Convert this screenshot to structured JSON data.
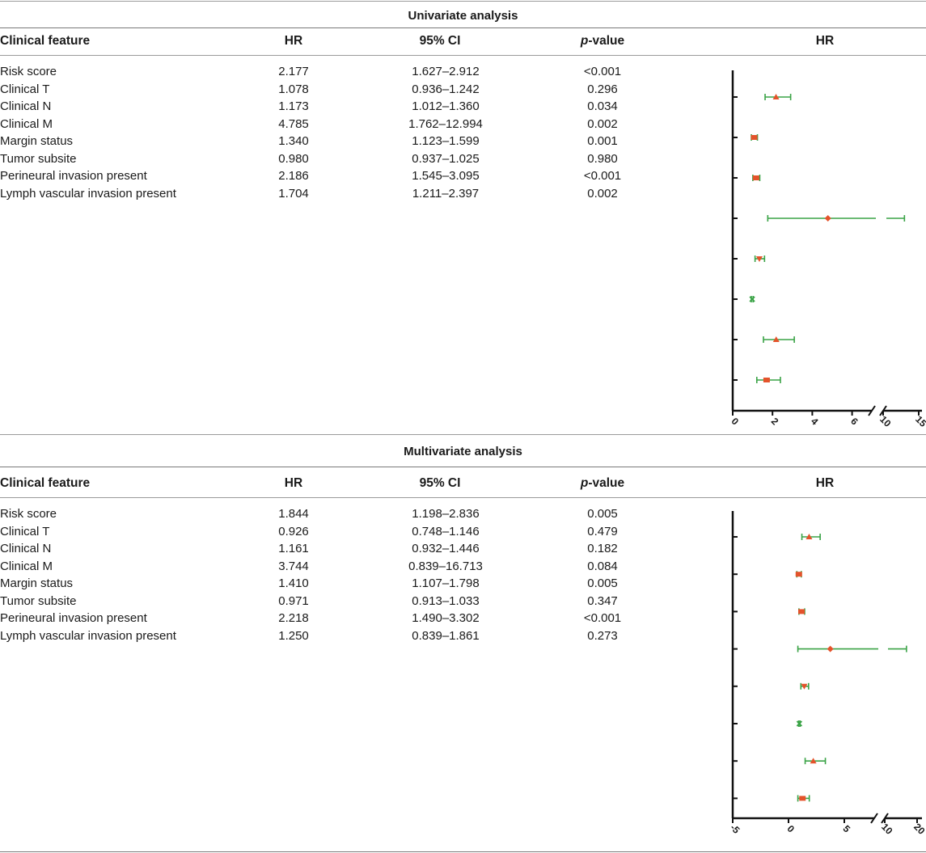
{
  "columns": {
    "feature": "Clinical feature",
    "hr": "HR",
    "ci": "95% CI",
    "p_italic": "p",
    "p_rest": "-value",
    "plot": "HR"
  },
  "univariate": {
    "title": "Univariate analysis",
    "rows": [
      {
        "feature": "Risk score",
        "hr": "2.177",
        "ci": "1.627–2.912",
        "p": "<0.001"
      },
      {
        "feature": "Clinical T",
        "hr": "1.078",
        "ci": "0.936–1.242",
        "p": "0.296"
      },
      {
        "feature": "Clinical N",
        "hr": "1.173",
        "ci": "1.012–1.360",
        "p": "0.034"
      },
      {
        "feature": "Clinical M",
        "hr": "4.785",
        "ci": "1.762–12.994",
        "p": "0.002"
      },
      {
        "feature": "Margin status",
        "hr": "1.340",
        "ci": "1.123–1.599",
        "p": "0.001"
      },
      {
        "feature": "Tumor subsite",
        "hr": "0.980",
        "ci": "0.937–1.025",
        "p": "0.980"
      },
      {
        "feature": "Perineural invasion present",
        "hr": "2.186",
        "ci": "1.545–3.095",
        "p": "<0.001"
      },
      {
        "feature": "Lymph vascular invasion present",
        "hr": "1.704",
        "ci": "1.211–2.397",
        "p": "0.002"
      }
    ],
    "plot_ticks": [
      "0",
      "2",
      "4",
      "6",
      "10",
      "15"
    ]
  },
  "multivariate": {
    "title": "Multivariate analysis",
    "rows": [
      {
        "feature": "Risk score",
        "hr": "1.844",
        "ci": "1.198–2.836",
        "p": "0.005"
      },
      {
        "feature": "Clinical T",
        "hr": "0.926",
        "ci": "0.748–1.146",
        "p": "0.479"
      },
      {
        "feature": "Clinical N",
        "hr": "1.161",
        "ci": "0.932–1.446",
        "p": "0.182"
      },
      {
        "feature": "Clinical M",
        "hr": "3.744",
        "ci": "0.839–16.713",
        "p": "0.084"
      },
      {
        "feature": "Margin status",
        "hr": "1.410",
        "ci": "1.107–1.798",
        "p": "0.005"
      },
      {
        "feature": "Tumor subsite",
        "hr": "0.971",
        "ci": "0.913–1.033",
        "p": "0.347"
      },
      {
        "feature": "Perineural invasion present",
        "hr": "2.218",
        "ci": "1.490–3.302",
        "p": "<0.001"
      },
      {
        "feature": "Lymph vascular invasion present",
        "hr": "1.250",
        "ci": "0.839–1.861",
        "p": "0.273"
      }
    ],
    "plot_ticks": [
      "-5",
      "0",
      "5",
      "10",
      "20"
    ]
  },
  "colors": {
    "ci_line": "#3aa346",
    "marker": "#e4532b",
    "axis": "#111111"
  },
  "chart_data": [
    {
      "type": "scatter",
      "subtype": "forest",
      "xlabel": "",
      "ylabel": "",
      "x_ticks": [
        "0",
        "2",
        "4",
        "6",
        "10",
        "15"
      ],
      "x_axis_break": [
        7,
        10
      ],
      "series": [
        {
          "hr": 2.177,
          "lower": 1.627,
          "upper": 2.912,
          "marker": "triangle"
        },
        {
          "hr": 1.078,
          "lower": 0.936,
          "upper": 1.242,
          "marker": "square"
        },
        {
          "hr": 1.173,
          "lower": 1.012,
          "upper": 1.36,
          "marker": "square"
        },
        {
          "hr": 4.785,
          "lower": 1.762,
          "upper": 12.994,
          "marker": "diamond"
        },
        {
          "hr": 1.34,
          "lower": 1.123,
          "upper": 1.599,
          "marker": "triangle-down"
        },
        {
          "hr": 0.98,
          "lower": 0.937,
          "upper": 1.025,
          "marker": "x"
        },
        {
          "hr": 2.186,
          "lower": 1.545,
          "upper": 3.095,
          "marker": "triangle"
        },
        {
          "hr": 1.704,
          "lower": 1.211,
          "upper": 2.397,
          "marker": "square"
        }
      ]
    },
    {
      "type": "scatter",
      "subtype": "forest",
      "xlabel": "",
      "ylabel": "",
      "x_ticks": [
        "-5",
        "0",
        "5",
        "10",
        "20"
      ],
      "x_axis_break": [
        8,
        10
      ],
      "series": [
        {
          "hr": 1.844,
          "lower": 1.198,
          "upper": 2.836,
          "marker": "triangle"
        },
        {
          "hr": 0.926,
          "lower": 0.748,
          "upper": 1.146,
          "marker": "square"
        },
        {
          "hr": 1.161,
          "lower": 0.932,
          "upper": 1.446,
          "marker": "square"
        },
        {
          "hr": 3.744,
          "lower": 0.839,
          "upper": 16.713,
          "marker": "diamond"
        },
        {
          "hr": 1.41,
          "lower": 1.107,
          "upper": 1.798,
          "marker": "triangle-down"
        },
        {
          "hr": 0.971,
          "lower": 0.913,
          "upper": 1.033,
          "marker": "x"
        },
        {
          "hr": 2.218,
          "lower": 1.49,
          "upper": 3.302,
          "marker": "triangle"
        },
        {
          "hr": 1.25,
          "lower": 0.839,
          "upper": 1.861,
          "marker": "square"
        }
      ]
    }
  ]
}
